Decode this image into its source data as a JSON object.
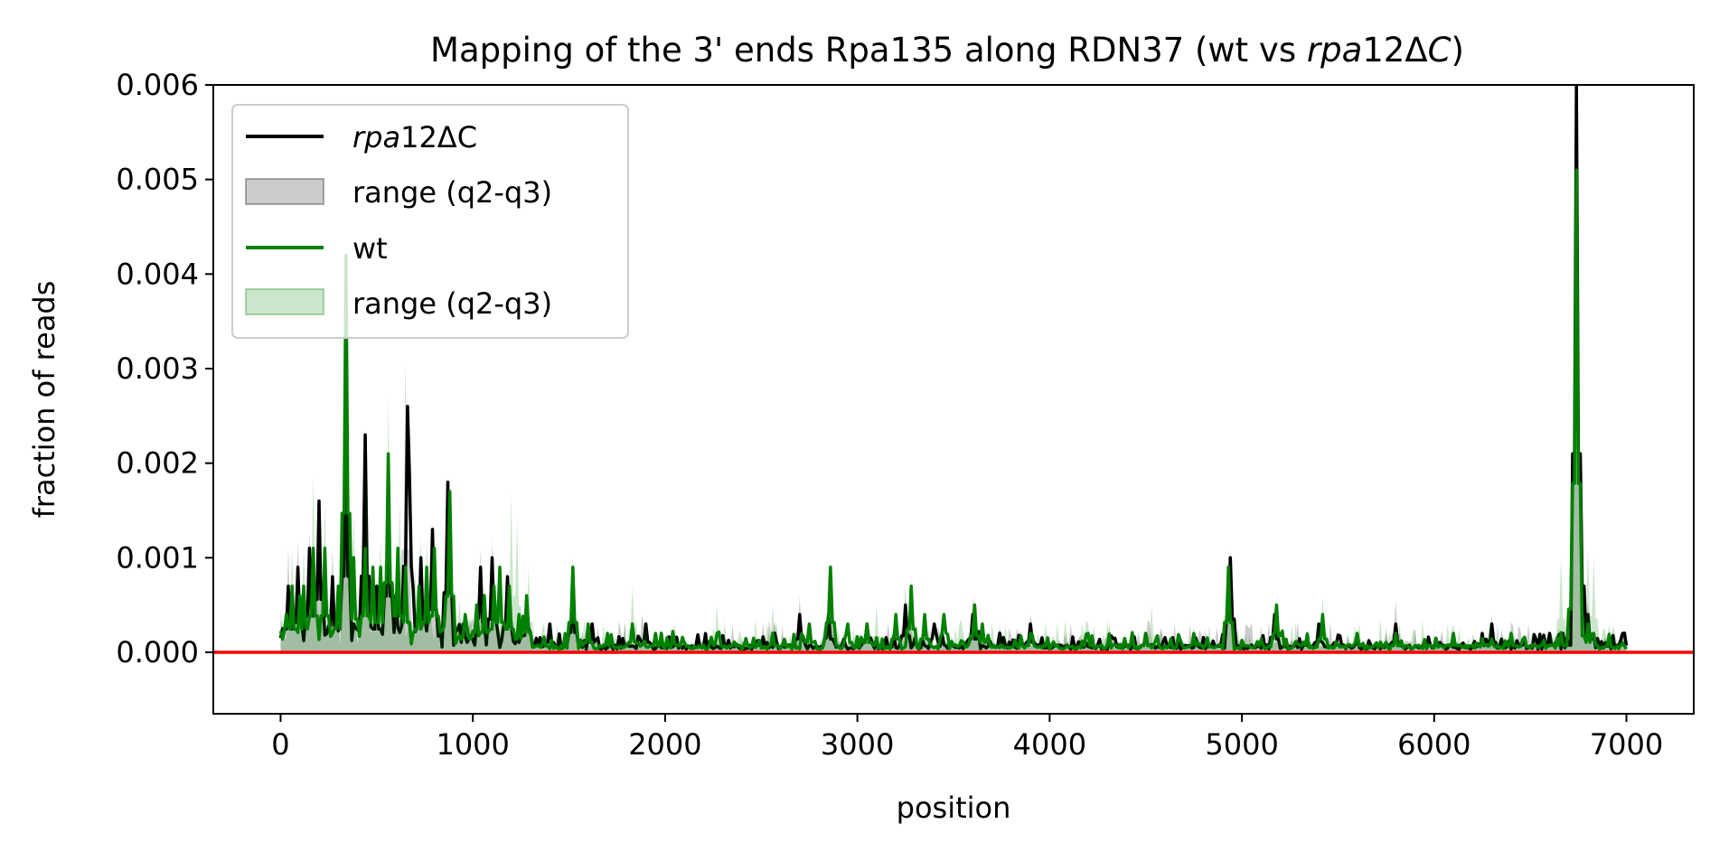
{
  "chart_data": {
    "type": "line",
    "title_prefix": "Mapping of the 3' ends Rpa135 along RDN37 (wt vs ",
    "title_italic": "rpa",
    "title_mid": "12Δ",
    "title_italic2": "C",
    "title_suffix": ")",
    "xlabel": "position",
    "ylabel": "fraction of reads",
    "xlim": [
      -350,
      7350
    ],
    "ylim": [
      -0.00065,
      0.006
    ],
    "xticks": [
      0,
      1000,
      2000,
      3000,
      4000,
      5000,
      6000,
      7000
    ],
    "xtick_labels": [
      "0",
      "1000",
      "2000",
      "3000",
      "4000",
      "5000",
      "6000",
      "7000"
    ],
    "yticks": [
      0,
      0.001,
      0.002,
      0.003,
      0.004,
      0.005,
      0.006
    ],
    "ytick_labels": [
      "0.000",
      "0.001",
      "0.002",
      "0.003",
      "0.004",
      "0.005",
      "0.006"
    ],
    "legend_position": "top-left",
    "legend": [
      {
        "kind": "line",
        "color": "#000000",
        "italic": "rpa",
        "label": "12ΔC"
      },
      {
        "kind": "patch",
        "color": "#000000",
        "alpha": 0.2,
        "label": "range (q2-q3)"
      },
      {
        "kind": "line",
        "color": "#008000",
        "label": "wt"
      },
      {
        "kind": "patch",
        "color": "#008000",
        "alpha": 0.2,
        "label": "range (q2-q3)"
      }
    ],
    "baseline": {
      "y": 0,
      "color": "#ff0000"
    },
    "series": [
      {
        "name": "rpa12ΔC",
        "color": "#000000",
        "range_peaks": [
          [
            40,
            0.0011
          ],
          [
            90,
            0.0012
          ],
          [
            150,
            0.0013
          ],
          [
            200,
            0.0016
          ],
          [
            270,
            0.0011
          ],
          [
            340,
            0.0024
          ],
          [
            440,
            0.0024
          ],
          [
            500,
            0.0008
          ],
          [
            560,
            0.0021
          ],
          [
            600,
            0.0008
          ],
          [
            650,
            0.0031
          ],
          [
            730,
            0.0012
          ],
          [
            790,
            0.0014
          ],
          [
            870,
            0.0019
          ],
          [
            1040,
            0.0011
          ],
          [
            1100,
            0.0012
          ],
          [
            1180,
            0.0009
          ],
          [
            1280,
            0.0006
          ],
          [
            1520,
            0.0007
          ],
          [
            1880,
            0.0004
          ],
          [
            2700,
            0.0006
          ],
          [
            2850,
            0.0009
          ],
          [
            3250,
            0.0007
          ],
          [
            3600,
            0.0006
          ],
          [
            3900,
            0.0004
          ],
          [
            4940,
            0.0011
          ],
          [
            5800,
            0.00055
          ],
          [
            6300,
            0.0004
          ],
          [
            6740,
            0.006
          ],
          [
            6760,
            0.0021
          ],
          [
            6800,
            0.0005
          ],
          [
            6980,
            0.0002
          ]
        ],
        "peaks": [
          [
            40,
            0.0007
          ],
          [
            90,
            0.0009
          ],
          [
            150,
            0.0011
          ],
          [
            200,
            0.0016
          ],
          [
            270,
            0.0008
          ],
          [
            340,
            0.0023
          ],
          [
            440,
            0.0023
          ],
          [
            500,
            0.0007
          ],
          [
            560,
            0.0017
          ],
          [
            600,
            0.0006
          ],
          [
            660,
            0.0026
          ],
          [
            670,
            0.0019
          ],
          [
            730,
            0.001
          ],
          [
            790,
            0.0013
          ],
          [
            870,
            0.0018
          ],
          [
            950,
            0.0003
          ],
          [
            1040,
            0.0009
          ],
          [
            1100,
            0.001
          ],
          [
            1180,
            0.0008
          ],
          [
            1280,
            0.0005
          ],
          [
            1400,
            0.0003
          ],
          [
            1520,
            0.0006
          ],
          [
            1620,
            0.0003
          ],
          [
            1900,
            0.0003
          ],
          [
            2700,
            0.0004
          ],
          [
            2850,
            0.0004
          ],
          [
            3050,
            0.0003
          ],
          [
            3250,
            0.0005
          ],
          [
            3400,
            0.0003
          ],
          [
            3600,
            0.0004
          ],
          [
            3900,
            0.0003
          ],
          [
            4500,
            0.0002
          ],
          [
            4940,
            0.001
          ],
          [
            5170,
            0.0004
          ],
          [
            5400,
            0.0003
          ],
          [
            5800,
            0.0003
          ],
          [
            6300,
            0.0003
          ],
          [
            6600,
            0.0002
          ],
          [
            6740,
            0.006
          ],
          [
            6760,
            0.002
          ],
          [
            6800,
            0.0004
          ],
          [
            6980,
            0.0002
          ]
        ]
      },
      {
        "name": "wt",
        "color": "#008000",
        "range_peaks": [
          [
            60,
            0.0011
          ],
          [
            120,
            0.0011
          ],
          [
            170,
            0.0019
          ],
          [
            230,
            0.0016
          ],
          [
            300,
            0.0008
          ],
          [
            340,
            0.0042
          ],
          [
            380,
            0.0015
          ],
          [
            450,
            0.0021
          ],
          [
            520,
            0.0012
          ],
          [
            560,
            0.0027
          ],
          [
            620,
            0.0016
          ],
          [
            700,
            0.0009
          ],
          [
            760,
            0.0012
          ],
          [
            880,
            0.0016
          ],
          [
            1060,
            0.0007
          ],
          [
            1140,
            0.001
          ],
          [
            1200,
            0.0017
          ],
          [
            1230,
            0.0014
          ],
          [
            1290,
            0.0009
          ],
          [
            1520,
            0.001
          ],
          [
            1830,
            0.0007
          ],
          [
            2270,
            0.0005
          ],
          [
            2560,
            0.0005
          ],
          [
            2860,
            0.0009
          ],
          [
            3100,
            0.0005
          ],
          [
            3280,
            0.0008
          ],
          [
            3610,
            0.0006
          ],
          [
            4200,
            0.0003
          ],
          [
            4530,
            0.0005
          ],
          [
            4930,
            0.0011
          ],
          [
            5180,
            0.0005
          ],
          [
            5420,
            0.0006
          ],
          [
            6100,
            0.0003
          ],
          [
            6660,
            0.001
          ],
          [
            6720,
            0.0015
          ],
          [
            6740,
            0.0051
          ],
          [
            6800,
            0.0011
          ],
          [
            6830,
            0.001
          ]
        ],
        "peaks": [
          [
            30,
            0.0004
          ],
          [
            60,
            0.0007
          ],
          [
            100,
            0.0006
          ],
          [
            120,
            0.0007
          ],
          [
            170,
            0.0011
          ],
          [
            230,
            0.0011
          ],
          [
            300,
            0.0007
          ],
          [
            340,
            0.0042
          ],
          [
            380,
            0.001
          ],
          [
            440,
            0.0011
          ],
          [
            480,
            0.0009
          ],
          [
            520,
            0.0009
          ],
          [
            560,
            0.0021
          ],
          [
            610,
            0.0011
          ],
          [
            650,
            0.0009
          ],
          [
            720,
            0.0007
          ],
          [
            760,
            0.0009
          ],
          [
            800,
            0.0011
          ],
          [
            880,
            0.0017
          ],
          [
            960,
            0.0004
          ],
          [
            1020,
            0.0005
          ],
          [
            1060,
            0.0006
          ],
          [
            1110,
            0.0007
          ],
          [
            1140,
            0.0009
          ],
          [
            1190,
            0.0007
          ],
          [
            1240,
            0.0004
          ],
          [
            1280,
            0.0006
          ],
          [
            1520,
            0.0009
          ],
          [
            1600,
            0.0003
          ],
          [
            1700,
            0.0002
          ],
          [
            1830,
            0.0003
          ],
          [
            1950,
            0.0002
          ],
          [
            2100,
            0.0001
          ],
          [
            2270,
            0.0002
          ],
          [
            2560,
            0.0002
          ],
          [
            2750,
            0.0003
          ],
          [
            2860,
            0.0009
          ],
          [
            2950,
            0.0003
          ],
          [
            3050,
            0.0003
          ],
          [
            3200,
            0.0004
          ],
          [
            3280,
            0.0007
          ],
          [
            3350,
            0.0004
          ],
          [
            3450,
            0.0004
          ],
          [
            3610,
            0.0005
          ],
          [
            3650,
            0.0003
          ],
          [
            3900,
            0.0002
          ],
          [
            4200,
            0.0002
          ],
          [
            4500,
            0.0002
          ],
          [
            4750,
            0.0002
          ],
          [
            4930,
            0.0009
          ],
          [
            5180,
            0.0005
          ],
          [
            5420,
            0.0004
          ],
          [
            5600,
            0.0002
          ],
          [
            5800,
            0.0002
          ],
          [
            6100,
            0.0002
          ],
          [
            6400,
            0.0002
          ],
          [
            6660,
            0.0002
          ],
          [
            6720,
            0.0013
          ],
          [
            6740,
            0.0051
          ],
          [
            6760,
            0.0005
          ],
          [
            6800,
            0.0003
          ],
          [
            6830,
            0.0002
          ],
          [
            6980,
            0.0001
          ]
        ]
      }
    ]
  }
}
